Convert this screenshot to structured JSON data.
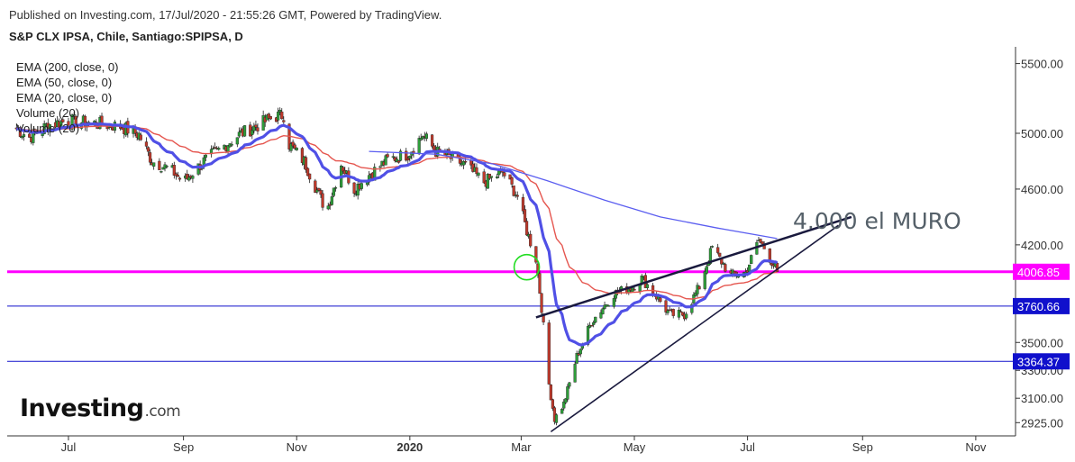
{
  "header": {
    "published": "Published on Investing.com, 17/Jul/2020 - 21:55:26 GMT, Powered by TradingView.",
    "symbol": "S&P CLX IPSA, Chile, Santiago:SPIPSA, D"
  },
  "legend": [
    "EMA (200, close, 0)",
    "EMA (50, close, 0)",
    "EMA (20, close, 0)",
    "Volume (20)",
    "Volume (20)"
  ],
  "logo": {
    "main": "Investing",
    "suffix": ".com"
  },
  "annotation": "4.000 el MURO",
  "colors": {
    "up": "#2e9e3a",
    "down": "#c0392b",
    "ema200": "#5b5ef0",
    "ema50": "#e5564f",
    "ema20": "#5050e6",
    "magenta": "#ff00ff",
    "blue_level": "#1010cc",
    "trend": "#1a1a3e"
  },
  "chart_data": {
    "type": "candlestick",
    "title": "S&P CLX IPSA, Chile, Santiago:SPIPSA, D",
    "y_range": [
      2830,
      5620
    ],
    "x_range": [
      "2019-05-29",
      "2020-11-20"
    ],
    "y_ticks": [
      {
        "value": 5500,
        "label": "5500.00"
      },
      {
        "value": 5000,
        "label": "5000.00"
      },
      {
        "value": 4600,
        "label": "4600.00"
      },
      {
        "value": 4200,
        "label": "4200.00"
      },
      {
        "value": 3500,
        "label": "3500.00"
      },
      {
        "value": 3300,
        "label": "3300.00"
      },
      {
        "value": 3100,
        "label": "3100.00"
      },
      {
        "value": 2925,
        "label": "2925.00"
      }
    ],
    "x_ticks": [
      {
        "date": "2019-07-01",
        "label": "Jul",
        "bold": false
      },
      {
        "date": "2019-09-01",
        "label": "Sep",
        "bold": false
      },
      {
        "date": "2019-11-01",
        "label": "Nov",
        "bold": false
      },
      {
        "date": "2020-01-01",
        "label": "2020",
        "bold": true
      },
      {
        "date": "2020-03-01",
        "label": "Mar",
        "bold": false
      },
      {
        "date": "2020-05-01",
        "label": "May",
        "bold": false
      },
      {
        "date": "2020-07-01",
        "label": "Jul",
        "bold": false
      },
      {
        "date": "2020-09-01",
        "label": "Sep",
        "bold": false
      },
      {
        "date": "2020-11-01",
        "label": "Nov",
        "bold": false
      }
    ],
    "price_anchors": [
      [
        "2019-06-01",
        5050
      ],
      [
        "2019-06-10",
        4970
      ],
      [
        "2019-06-20",
        5060
      ],
      [
        "2019-07-01",
        5090
      ],
      [
        "2019-07-15",
        5070
      ],
      [
        "2019-07-29",
        5050
      ],
      [
        "2019-08-08",
        4990
      ],
      [
        "2019-08-15",
        4800
      ],
      [
        "2019-08-25",
        4740
      ],
      [
        "2019-09-01",
        4650
      ],
      [
        "2019-09-12",
        4800
      ],
      [
        "2019-09-20",
        4880
      ],
      [
        "2019-10-01",
        4990
      ],
      [
        "2019-10-10",
        5050
      ],
      [
        "2019-10-20",
        5120
      ],
      [
        "2019-10-25",
        5130
      ],
      [
        "2019-10-28",
        4920
      ],
      [
        "2019-11-05",
        4800
      ],
      [
        "2019-11-15",
        4500
      ],
      [
        "2019-11-18",
        4480
      ],
      [
        "2019-11-25",
        4780
      ],
      [
        "2019-12-02",
        4600
      ],
      [
        "2019-12-10",
        4700
      ],
      [
        "2019-12-20",
        4810
      ],
      [
        "2019-12-31",
        4850
      ],
      [
        "2020-01-08",
        4990
      ],
      [
        "2020-01-15",
        4870
      ],
      [
        "2020-01-30",
        4780
      ],
      [
        "2020-02-10",
        4650
      ],
      [
        "2020-02-20",
        4720
      ],
      [
        "2020-02-28",
        4550
      ],
      [
        "2020-03-04",
        4300
      ],
      [
        "2020-03-09",
        4100
      ],
      [
        "2020-03-12",
        3750
      ],
      [
        "2020-03-16",
        3200
      ],
      [
        "2020-03-19",
        2950
      ],
      [
        "2020-03-24",
        3060
      ],
      [
        "2020-03-31",
        3400
      ],
      [
        "2020-04-08",
        3650
      ],
      [
        "2020-04-20",
        3850
      ],
      [
        "2020-04-30",
        3900
      ],
      [
        "2020-05-05",
        3960
      ],
      [
        "2020-05-12",
        3850
      ],
      [
        "2020-05-20",
        3700
      ],
      [
        "2020-05-28",
        3700
      ],
      [
        "2020-06-05",
        3900
      ],
      [
        "2020-06-12",
        4180
      ],
      [
        "2020-06-22",
        3980
      ],
      [
        "2020-06-30",
        4000
      ],
      [
        "2020-07-07",
        4230
      ],
      [
        "2020-07-10",
        4180
      ],
      [
        "2020-07-17",
        4010
      ]
    ],
    "last_close": 4006.85,
    "price_levels": [
      {
        "value": 4006.85,
        "label": "4006.85",
        "color": "#ff00ff"
      },
      {
        "value": 3760.66,
        "label": "3760.66",
        "color": "#1010cc"
      },
      {
        "value": 3364.37,
        "label": "3364.37",
        "color": "#1010cc"
      }
    ],
    "ema200_anchors": [
      [
        "2019-12-10",
        4870
      ],
      [
        "2020-01-15",
        4850
      ],
      [
        "2020-02-15",
        4780
      ],
      [
        "2020-03-15",
        4660
      ],
      [
        "2020-04-15",
        4520
      ],
      [
        "2020-05-15",
        4400
      ],
      [
        "2020-06-15",
        4320
      ],
      [
        "2020-07-17",
        4245
      ]
    ],
    "trendlines": [
      {
        "name": "upper",
        "from": [
          "2020-03-09",
          3680
        ],
        "to": [
          "2020-08-26",
          4400
        ]
      },
      {
        "name": "lower",
        "from": [
          "2020-03-17",
          2860
        ],
        "to": [
          "2020-08-19",
          4340
        ]
      }
    ],
    "annotation_marker": {
      "date": "2020-03-04",
      "value": 4040
    }
  }
}
